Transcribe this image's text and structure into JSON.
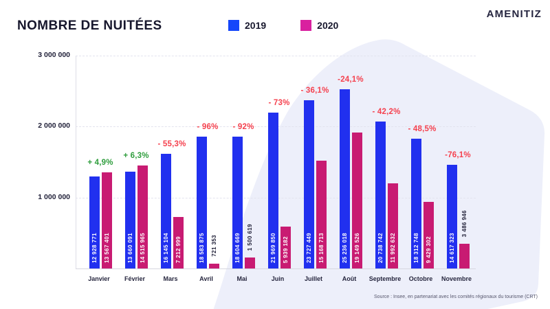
{
  "header": {
    "title": "NOMBRE DE NUITÉES",
    "brand": "AMENITIZ"
  },
  "legend": {
    "items": [
      {
        "label": "2019",
        "color": "#1546fa"
      },
      {
        "label": "2020",
        "color": "#d9209f"
      }
    ]
  },
  "colors": {
    "bar_2019": "#2130ef",
    "bar_2020": "#c81b72",
    "positive": "#2e9d3c",
    "negative": "#f5414e",
    "background_shape": "#edeffa",
    "grid": "#e2e3ee",
    "axis": "#d6d7e0",
    "inside_label": "#ffffff",
    "outside_label": "#1c1c34"
  },
  "chart_data": {
    "type": "bar",
    "title": "NOMBRE DE NUITÉES",
    "categories": [
      "Janvier",
      "Février",
      "Mars",
      "Avril",
      "Mai",
      "Juin",
      "Juillet",
      "Août",
      "Septembre",
      "Octobre",
      "Novembre"
    ],
    "series": [
      {
        "name": "2019",
        "color": "#2130ef",
        "values": [
          12928771,
          13660091,
          16145104,
          18583875,
          18604669,
          21969850,
          23727449,
          25236018,
          20738742,
          18312748,
          14617323
        ]
      },
      {
        "name": "2020",
        "color": "#c81b72",
        "values": [
          13567401,
          14515965,
          7212999,
          721353,
          1500619,
          5939182,
          15168713,
          19149526,
          11992632,
          9429302,
          3486946
        ]
      }
    ],
    "percent_change": [
      {
        "text": "+ 4,9%",
        "direction": "up"
      },
      {
        "text": "+ 6,3%",
        "direction": "up"
      },
      {
        "text": "- 55,3%",
        "direction": "down"
      },
      {
        "text": "- 96%",
        "direction": "down"
      },
      {
        "text": "- 92%",
        "direction": "down"
      },
      {
        "text": "- 73%",
        "direction": "down"
      },
      {
        "text": "- 36,1%",
        "direction": "down"
      },
      {
        "text": "-24,1%",
        "direction": "down"
      },
      {
        "text": "- 42,2%",
        "direction": "down"
      },
      {
        "text": "- 48,5%",
        "direction": "down"
      },
      {
        "text": "-76,1%",
        "direction": "down"
      }
    ],
    "y_ticks": [
      "3 000 000",
      "2 000 000",
      "1 000 000"
    ],
    "ylim": [
      0,
      3000000
    ],
    "bar_value_scale_divisor": 10,
    "legend_position": "top",
    "grid": "horizontal",
    "xlabel": "",
    "ylabel": ""
  },
  "footer": {
    "source": "Source : Insee, en partenariat avec les comités régionaux du tourisme (CRT)"
  }
}
